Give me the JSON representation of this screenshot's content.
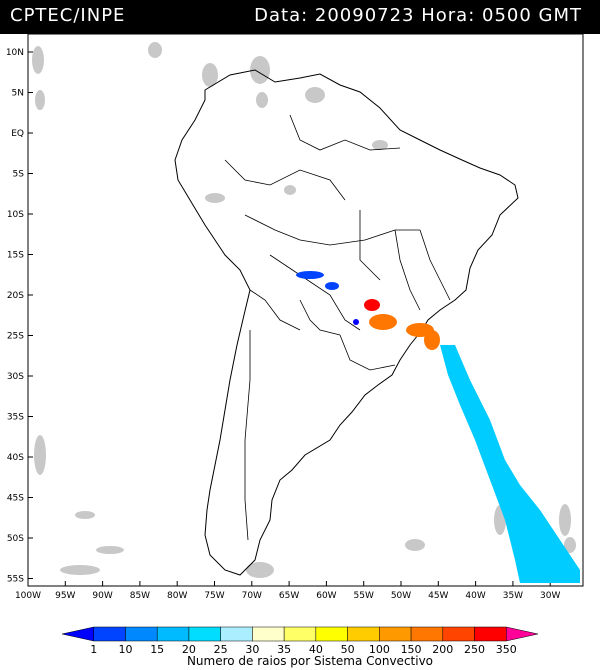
{
  "header": {
    "source": "CPTEC/INPE",
    "datetime": "Data: 20090723 Hora: 0500 GMT"
  },
  "map": {
    "lat_labels": [
      "10N",
      "5N",
      "EQ",
      "5S",
      "10S",
      "15S",
      "20S",
      "25S",
      "30S",
      "35S",
      "40S",
      "45S",
      "50S",
      "55S"
    ],
    "lon_labels": [
      "100W",
      "95W",
      "90W",
      "85W",
      "80W",
      "75W",
      "70W",
      "65W",
      "60W",
      "55W",
      "50W",
      "45W",
      "40W",
      "35W",
      "30W"
    ]
  },
  "colorbar": {
    "title": "Numero de raios por Sistema Convectivo",
    "ticks": [
      "1",
      "10",
      "15",
      "20",
      "25",
      "30",
      "35",
      "40",
      "50",
      "100",
      "150",
      "200",
      "250",
      "350"
    ],
    "colors": [
      "#0000ff",
      "#0044ff",
      "#0088ff",
      "#00bbff",
      "#00ddff",
      "#aaeeff",
      "#ffffcc",
      "#ffff66",
      "#ffff00",
      "#ffcc00",
      "#ff9900",
      "#ff7700",
      "#ff4400",
      "#ff0000",
      "#ff0099"
    ]
  }
}
